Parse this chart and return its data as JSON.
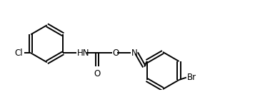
{
  "background_color": "#ffffff",
  "line_color": "#000000",
  "line_width": 1.4,
  "font_size": 8.5,
  "fig_width": 3.85,
  "fig_height": 1.5,
  "dpi": 100,
  "xlim": [
    0,
    5.6
  ],
  "ylim": [
    0,
    1.5
  ]
}
